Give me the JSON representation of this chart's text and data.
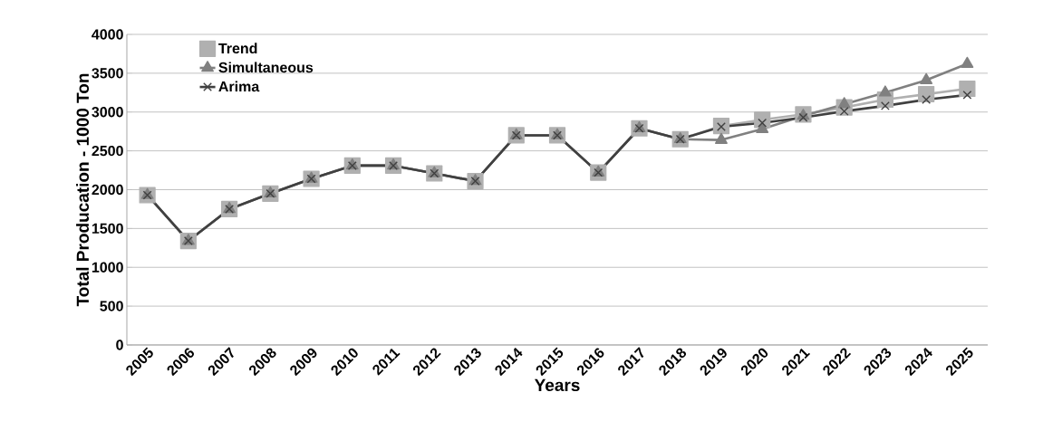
{
  "chart_data": {
    "type": "line",
    "xlabel": "Years",
    "ylabel": "Total Producation - 1000 Ton",
    "categories": [
      "2005",
      "2006",
      "2007",
      "2008",
      "2009",
      "2010",
      "2011",
      "2012",
      "2013",
      "2014",
      "2015",
      "2016",
      "2017",
      "2018",
      "2019",
      "2020",
      "2021",
      "2022",
      "2023",
      "2024",
      "2025"
    ],
    "series": [
      {
        "name": "Trend",
        "color": "#b0b0b0",
        "marker": "square",
        "values": [
          1930,
          1340,
          1750,
          1950,
          2140,
          2310,
          2310,
          2210,
          2110,
          2700,
          2700,
          2220,
          2790,
          2650,
          2820,
          2900,
          2970,
          3060,
          3160,
          3230,
          3300
        ]
      },
      {
        "name": "Simultaneous",
        "color": "#808080",
        "marker": "triangle",
        "values": [
          1930,
          1340,
          1750,
          1950,
          2140,
          2310,
          2310,
          2210,
          2110,
          2700,
          2700,
          2220,
          2790,
          2650,
          2640,
          2780,
          2950,
          3100,
          3250,
          3410,
          3620
        ]
      },
      {
        "name": "Arima",
        "color": "#404040",
        "marker": "cross",
        "values": [
          1930,
          1340,
          1750,
          1950,
          2140,
          2310,
          2310,
          2210,
          2110,
          2700,
          2700,
          2220,
          2790,
          2650,
          2810,
          2860,
          2930,
          3010,
          3080,
          3160,
          3220
        ]
      }
    ],
    "ylim": [
      0,
      4000
    ],
    "yticks": [
      0,
      500,
      1000,
      1500,
      2000,
      2500,
      3000,
      3500,
      4000
    ],
    "grid": "y",
    "legend": "top left",
    "line_style": "solid"
  }
}
